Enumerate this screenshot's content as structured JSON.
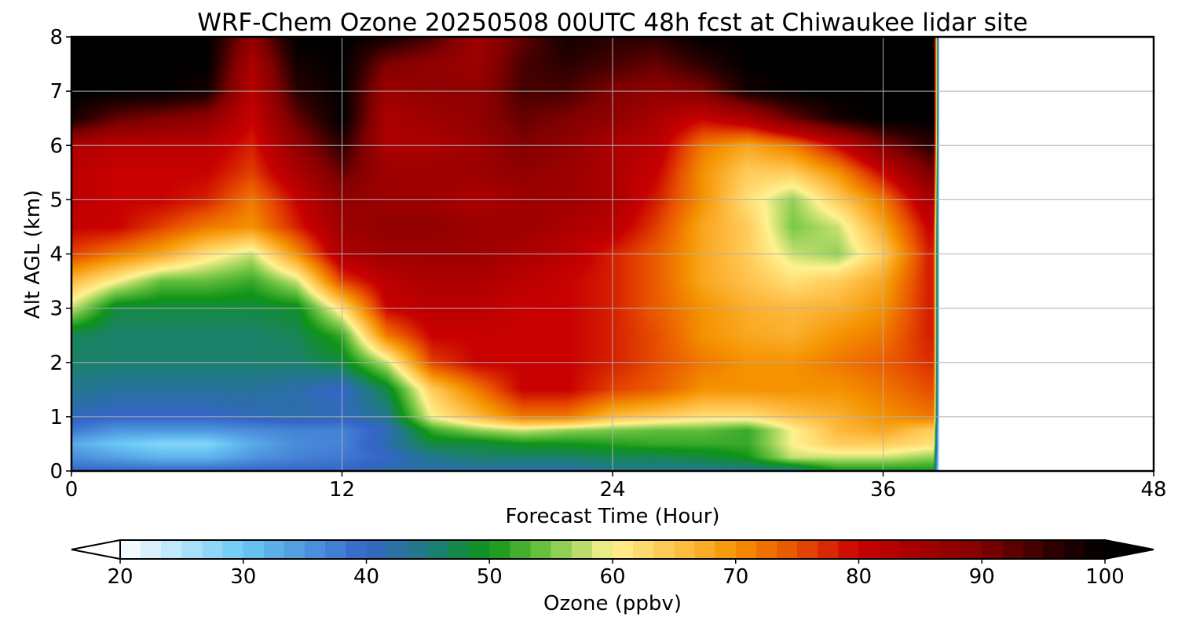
{
  "chart_data": {
    "type": "heatmap",
    "title": "WRF-Chem Ozone  20250508 00UTC 48h fcst at Chiwaukee lidar site",
    "xlabel": "Forecast Time (Hour)",
    "ylabel": "Alt AGL (km)",
    "xlim": [
      0,
      48
    ],
    "ylim": [
      0,
      8
    ],
    "xticks": [
      "0",
      "12",
      "24",
      "36",
      "48"
    ],
    "yticks": [
      "0",
      "1",
      "2",
      "3",
      "4",
      "5",
      "6",
      "7",
      "8"
    ],
    "grid": true,
    "data_end_hour": 38.5,
    "colorbar": {
      "label": "Ozone  (ppbv)",
      "min": 20,
      "max": 100,
      "ticks": [
        "20",
        "30",
        "40",
        "50",
        "60",
        "70",
        "80",
        "90",
        "100"
      ],
      "extend": "both",
      "colors": [
        {
          "v": 20,
          "c": "#ffffff"
        },
        {
          "v": 30,
          "c": "#6ac8f5"
        },
        {
          "v": 40,
          "c": "#3565c8"
        },
        {
          "v": 45,
          "c": "#1f7c80"
        },
        {
          "v": 50,
          "c": "#0f9418"
        },
        {
          "v": 55,
          "c": "#78c846"
        },
        {
          "v": 60,
          "c": "#fff291"
        },
        {
          "v": 65,
          "c": "#ffc34d"
        },
        {
          "v": 70,
          "c": "#f59300"
        },
        {
          "v": 75,
          "c": "#e85000"
        },
        {
          "v": 80,
          "c": "#c80000"
        },
        {
          "v": 90,
          "c": "#820000"
        },
        {
          "v": 96,
          "c": "#2a0000"
        },
        {
          "v": 100,
          "c": "#000000"
        }
      ]
    },
    "hours": [
      0,
      2,
      4,
      6,
      8,
      10,
      12,
      14,
      16,
      18,
      20,
      22,
      24,
      26,
      28,
      30,
      32,
      34,
      36,
      38
    ],
    "altitudes_km": [
      0,
      0.25,
      0.5,
      0.75,
      1,
      1.5,
      2,
      2.5,
      3,
      3.5,
      4,
      4.5,
      5,
      5.5,
      6,
      6.5,
      7,
      7.5,
      8
    ],
    "ozone_ppbv": [
      [
        40,
        40,
        40,
        40,
        40,
        40,
        40,
        42,
        42,
        42,
        42,
        42,
        44,
        44,
        44,
        44,
        44,
        50,
        50,
        50
      ],
      [
        36,
        34,
        32,
        32,
        35,
        37,
        38,
        40,
        44,
        46,
        46,
        46,
        47,
        47,
        48,
        50,
        58,
        58,
        58,
        56
      ],
      [
        33,
        30,
        28,
        28,
        33,
        36,
        37,
        42,
        48,
        48,
        50,
        50,
        51,
        52,
        52,
        52,
        60,
        64,
        64,
        62
      ],
      [
        38,
        35,
        35,
        35,
        36,
        37,
        37,
        41,
        52,
        56,
        58,
        56,
        55,
        54,
        54,
        52,
        60,
        66,
        68,
        64
      ],
      [
        41,
        40,
        40,
        40,
        41,
        42,
        41,
        44,
        60,
        66,
        72,
        72,
        66,
        64,
        62,
        62,
        65,
        67,
        70,
        72
      ],
      [
        44,
        43,
        43,
        43,
        43,
        42,
        40,
        48,
        64,
        72,
        80,
        80,
        76,
        74,
        70,
        70,
        70,
        70,
        72,
        75
      ],
      [
        46,
        46,
        46,
        46,
        46,
        46,
        48,
        58,
        76,
        80,
        80,
        80,
        78,
        75,
        72,
        70,
        70,
        72,
        74,
        77
      ],
      [
        47,
        46,
        46,
        46,
        46,
        47,
        52,
        72,
        80,
        80,
        80,
        80,
        78,
        75,
        70,
        68,
        67,
        70,
        72,
        78
      ],
      [
        58,
        48,
        48,
        48,
        48,
        49,
        62,
        80,
        82,
        82,
        80,
        80,
        78,
        74,
        70,
        67,
        66,
        67,
        70,
        78
      ],
      [
        66,
        60,
        54,
        54,
        52,
        58,
        76,
        82,
        84,
        84,
        82,
        80,
        78,
        74,
        68,
        65,
        62,
        64,
        68,
        78
      ],
      [
        76,
        72,
        68,
        62,
        58,
        70,
        84,
        86,
        86,
        86,
        84,
        82,
        78,
        74,
        68,
        64,
        58,
        56,
        64,
        78
      ],
      [
        80,
        80,
        76,
        72,
        70,
        78,
        86,
        88,
        88,
        86,
        86,
        84,
        82,
        76,
        68,
        64,
        55,
        58,
        68,
        80
      ],
      [
        82,
        80,
        80,
        78,
        72,
        80,
        88,
        86,
        86,
        84,
        86,
        86,
        84,
        78,
        70,
        62,
        56,
        64,
        72,
        84
      ],
      [
        82,
        80,
        80,
        80,
        76,
        84,
        92,
        86,
        86,
        86,
        88,
        86,
        84,
        80,
        70,
        64,
        64,
        70,
        80,
        90
      ],
      [
        84,
        82,
        82,
        82,
        78,
        88,
        96,
        84,
        84,
        86,
        90,
        88,
        84,
        82,
        72,
        68,
        72,
        80,
        90,
        96
      ],
      [
        98,
        92,
        90,
        88,
        80,
        92,
        100,
        84,
        86,
        88,
        92,
        90,
        88,
        84,
        80,
        84,
        92,
        98,
        100,
        100
      ],
      [
        100,
        100,
        100,
        98,
        82,
        96,
        100,
        86,
        88,
        88,
        94,
        94,
        90,
        88,
        90,
        98,
        100,
        100,
        100,
        100
      ],
      [
        100,
        100,
        100,
        100,
        84,
        98,
        100,
        90,
        88,
        86,
        94,
        96,
        94,
        92,
        96,
        100,
        100,
        100,
        100,
        100
      ],
      [
        100,
        100,
        100,
        100,
        88,
        100,
        100,
        98,
        94,
        86,
        92,
        98,
        96,
        96,
        100,
        100,
        100,
        100,
        100,
        100
      ]
    ]
  }
}
